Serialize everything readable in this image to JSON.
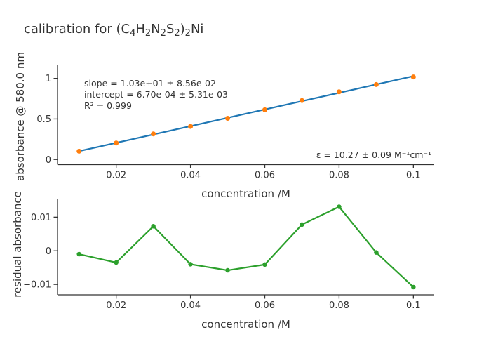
{
  "figure": {
    "title_segments": [
      {
        "text": "calibration for (C"
      },
      {
        "text": "4",
        "sub": true
      },
      {
        "text": "H"
      },
      {
        "text": "2",
        "sub": true
      },
      {
        "text": "N"
      },
      {
        "text": "2",
        "sub": true
      },
      {
        "text": "S"
      },
      {
        "text": "2",
        "sub": true
      },
      {
        "text": ")"
      },
      {
        "text": "2",
        "sub": true
      },
      {
        "text": "Ni"
      }
    ],
    "background": "#ffffff",
    "text_color": "#333333",
    "axis_color": "#333333"
  },
  "chart_data": [
    {
      "type": "scatter",
      "title": "",
      "xlabel": "concentration /M",
      "ylabel": "absorbance @ 580.0 nm",
      "xrange": [
        0.0042,
        0.1056
      ],
      "yrange": [
        -0.063,
        1.17
      ],
      "grid": false,
      "legend": "none",
      "xticks": {
        "values": [
          0.02,
          0.04,
          0.06,
          0.08,
          0.1
        ],
        "labels": [
          "0.02",
          "0.04",
          "0.06",
          "0.08",
          "0.1"
        ]
      },
      "yticks": {
        "values": [
          0,
          0.5,
          1
        ],
        "labels": [
          "0",
          "0.5",
          "1"
        ]
      },
      "series": [
        {
          "name": "linear-fit",
          "mode": "lines",
          "color": "#1f77b4",
          "width": 2.2,
          "x": [
            0.01,
            0.1
          ],
          "y": [
            0.1034,
            1.0277
          ]
        },
        {
          "name": "calibration-points",
          "mode": "markers",
          "color": "#ff7f0e",
          "size": 7,
          "x": [
            0.01,
            0.02,
            0.03,
            0.04,
            0.05,
            0.06,
            0.07,
            0.08,
            0.09,
            0.1
          ],
          "y": [
            0.102,
            0.203,
            0.316,
            0.408,
            0.508,
            0.613,
            0.727,
            0.835,
            0.924,
            1.017
          ]
        }
      ],
      "annotations": {
        "slope": "slope = 1.03e+01 ± 8.56e-02",
        "intercept": "intercept = 6.70e-04 ± 5.31e-03",
        "r_squared": "R² = 0.999",
        "epsilon": "ε = 10.27 ± 0.09 M⁻¹cm⁻¹"
      }
    },
    {
      "type": "line",
      "title": "",
      "xlabel": "concentration /M",
      "ylabel": "residual absorbance",
      "xrange": [
        0.0042,
        0.1056
      ],
      "yrange": [
        -0.0131,
        0.0155
      ],
      "grid": false,
      "legend": "none",
      "xticks": {
        "values": [
          0.02,
          0.04,
          0.06,
          0.08,
          0.1
        ],
        "labels": [
          "0.02",
          "0.04",
          "0.06",
          "0.08",
          "0.1"
        ]
      },
      "yticks": {
        "values": [
          -0.01,
          0,
          0.01
        ],
        "labels": [
          "−0.01",
          "0",
          "0.01"
        ]
      },
      "series": [
        {
          "name": "residuals",
          "mode": "lines+markers",
          "color": "#2ca02c",
          "width": 2.2,
          "size": 6.5,
          "x": [
            0.01,
            0.02,
            0.03,
            0.04,
            0.05,
            0.06,
            0.07,
            0.08,
            0.09,
            0.1
          ],
          "y": [
            -0.001,
            -0.0035,
            0.0073,
            -0.004,
            -0.0058,
            -0.0041,
            0.0078,
            0.0131,
            -0.0005,
            -0.0108
          ]
        }
      ]
    }
  ]
}
